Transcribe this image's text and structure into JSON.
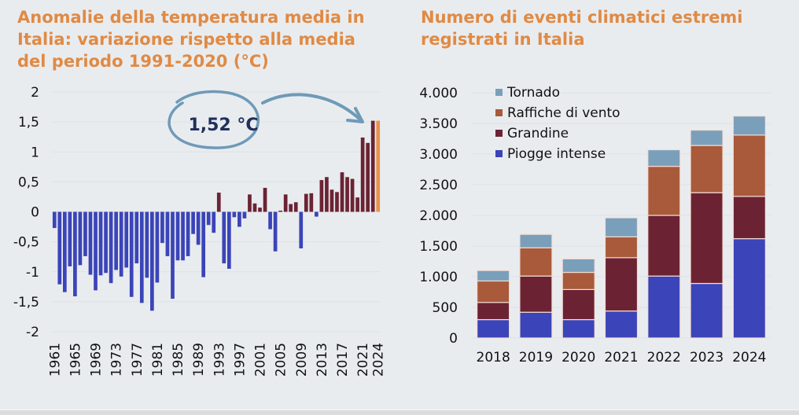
{
  "colors": {
    "title": "#e08a44",
    "negative": "#3b44b8",
    "positive": "#6b2334",
    "highlight": "#e8924a",
    "annotation": "#6f9ab8",
    "annotation_text": "#1f2f5c",
    "tornado": "#7a9fbb",
    "raffiche": "#a85a3a",
    "grandine": "#6b2334",
    "piogge": "#3b44b8"
  },
  "chart_data": [
    {
      "type": "bar",
      "title": "Anomalie della temperatura media in Italia: variazione rispetto alla media del periodo 1991-2020 (°C)",
      "xlabel": "",
      "ylabel": "",
      "ylim": [
        -2,
        2
      ],
      "yticks": [
        "2",
        "1,5",
        "1",
        "0,5",
        "0",
        "-0,5",
        "-1",
        "-1,5",
        "-2"
      ],
      "ytick_values": [
        2,
        1.5,
        1,
        0.5,
        0,
        -0.5,
        -1,
        -1.5,
        -2
      ],
      "xtick_labels": [
        "1961",
        "1965",
        "1969",
        "1973",
        "1977",
        "1981",
        "1985",
        "1989",
        "1993",
        "1997",
        "2001",
        "2005",
        "2009",
        "2013",
        "2017",
        "2021",
        "2024"
      ],
      "grid": true,
      "annotation": {
        "text": "1,52 °C",
        "target_year": 2024
      },
      "categories": [
        1961,
        1962,
        1963,
        1964,
        1965,
        1966,
        1967,
        1968,
        1969,
        1970,
        1971,
        1972,
        1973,
        1974,
        1975,
        1976,
        1977,
        1978,
        1979,
        1980,
        1981,
        1982,
        1983,
        1984,
        1985,
        1986,
        1987,
        1988,
        1989,
        1990,
        1991,
        1992,
        1993,
        1994,
        1995,
        1996,
        1997,
        1998,
        1999,
        2000,
        2001,
        2002,
        2003,
        2004,
        2005,
        2006,
        2007,
        2008,
        2009,
        2010,
        2011,
        2012,
        2013,
        2014,
        2015,
        2016,
        2017,
        2018,
        2019,
        2020,
        2021,
        2022,
        2023,
        2024
      ],
      "values": [
        -0.27,
        -1.21,
        -1.34,
        -0.91,
        -1.41,
        -0.89,
        -0.74,
        -1.05,
        -1.31,
        -1.06,
        -1.02,
        -1.19,
        -0.97,
        -1.08,
        -0.93,
        -1.42,
        -0.86,
        -1.52,
        -1.1,
        -1.65,
        -1.18,
        -0.52,
        -0.74,
        -1.45,
        -0.81,
        -0.81,
        -0.74,
        -0.37,
        -0.55,
        -1.09,
        -0.22,
        -0.35,
        0.32,
        -0.86,
        -0.95,
        -0.09,
        -0.25,
        -0.11,
        0.29,
        0.14,
        0.07,
        0.4,
        -0.29,
        -0.66,
        0.02,
        0.29,
        0.13,
        0.16,
        -0.61,
        0.3,
        0.31,
        -0.08,
        0.53,
        0.58,
        0.37,
        0.33,
        0.66,
        0.58,
        0.55,
        0.24,
        1.24,
        1.15,
        1.52,
        1.52
      ]
    },
    {
      "type": "bar",
      "stacked": true,
      "title": "Numero di eventi climatici estremi registrati in Italia",
      "xlabel": "",
      "ylabel": "",
      "ylim": [
        0,
        4000
      ],
      "yticks": [
        "4.000",
        "3.500",
        "3.000",
        "2.500",
        "2.000",
        "1.500",
        "1.000",
        "500",
        "0"
      ],
      "ytick_values": [
        4000,
        3500,
        3000,
        2500,
        2000,
        1500,
        1000,
        500,
        0
      ],
      "grid": true,
      "legend_position": "top-left",
      "categories": [
        "2018",
        "2019",
        "2020",
        "2021",
        "2022",
        "2023",
        "2024"
      ],
      "series": [
        {
          "name": "Piogge intense",
          "values": [
            300,
            420,
            300,
            440,
            1010,
            890,
            1620
          ]
        },
        {
          "name": "Grandine",
          "values": [
            280,
            590,
            490,
            870,
            990,
            1480,
            690
          ]
        },
        {
          "name": "Raffiche di vento",
          "values": [
            350,
            460,
            280,
            340,
            800,
            770,
            1000
          ]
        },
        {
          "name": "Tornado",
          "values": [
            170,
            220,
            220,
            310,
            270,
            250,
            310
          ]
        }
      ],
      "legend_order": [
        "Tornado",
        "Raffiche di vento",
        "Grandine",
        "Piogge intense"
      ]
    }
  ]
}
